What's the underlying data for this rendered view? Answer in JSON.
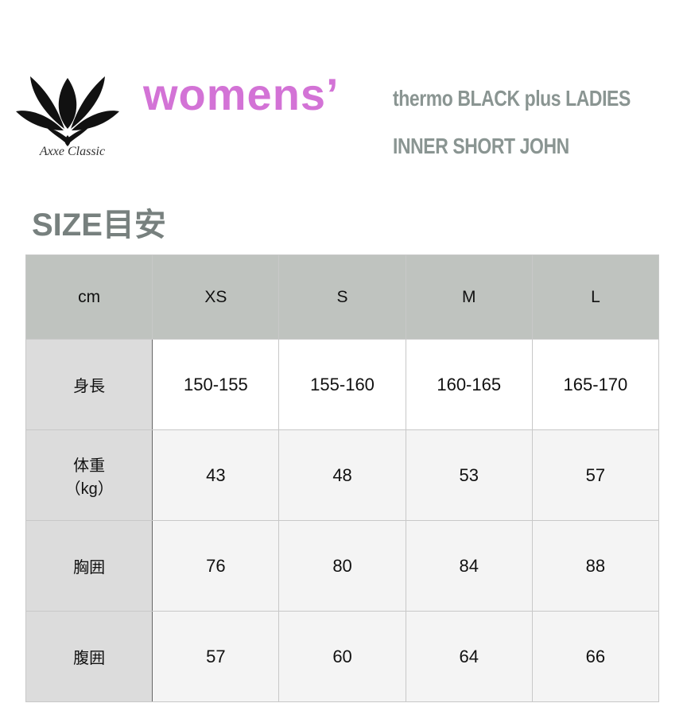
{
  "brand": {
    "logo_text": "Axxe Classic"
  },
  "header": {
    "womens": "womens’",
    "product_line1": "thermo BLACK plus LADIES",
    "product_line2": "INNER SHORT JOHN"
  },
  "size_title": "SIZE目安",
  "colors": {
    "womens": "#d373d6",
    "product": "#8a9592",
    "header_bg": "#bfc3bf",
    "label_bg": "#dcdcdc"
  },
  "table": {
    "headers": [
      "cm",
      "XS",
      "S",
      "M",
      "L"
    ],
    "rows": [
      {
        "label": "身長",
        "label2": "",
        "values": [
          "150-155",
          "155-160",
          "160-165",
          "165-170"
        ]
      },
      {
        "label": "体重",
        "label2": "（kg）",
        "values": [
          "43",
          "48",
          "53",
          "57"
        ]
      },
      {
        "label": "胸囲",
        "label2": "",
        "values": [
          "76",
          "80",
          "84",
          "88"
        ]
      },
      {
        "label": "腹囲",
        "label2": "",
        "values": [
          "57",
          "60",
          "64",
          "66"
        ]
      }
    ]
  }
}
